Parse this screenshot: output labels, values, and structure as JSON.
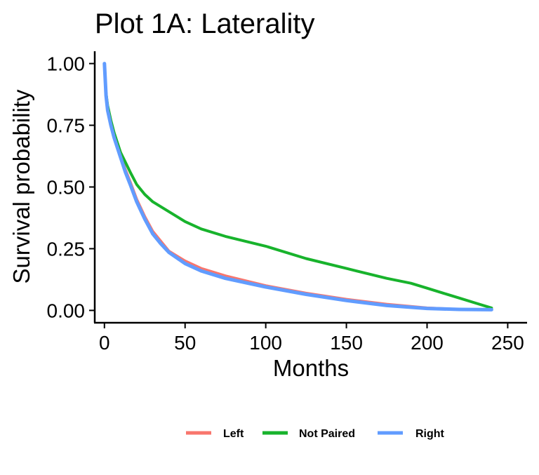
{
  "chart_data": {
    "type": "line",
    "title": "Plot 1A: Laterality",
    "xlabel": "Months",
    "ylabel": "Survival probability",
    "xlim": [
      -6,
      262
    ],
    "ylim": [
      -0.05,
      1.05
    ],
    "x_ticks": [
      0,
      50,
      100,
      150,
      200,
      250
    ],
    "x_tick_labels": [
      "0",
      "50",
      "100",
      "150",
      "200",
      "250"
    ],
    "y_ticks": [
      0,
      0.25,
      0.5,
      0.75,
      1.0
    ],
    "y_tick_labels": [
      "0.00",
      "0.25",
      "0.50",
      "0.75",
      "1.00"
    ],
    "grid": false,
    "legend_position": "bottom",
    "series": [
      {
        "name": "Left",
        "color": "#F8766D",
        "x": [
          0,
          1,
          2,
          4,
          6,
          8,
          10,
          13,
          16,
          20,
          25,
          30,
          35,
          40,
          50,
          60,
          75,
          100,
          125,
          150,
          175,
          200,
          220,
          240
        ],
        "y": [
          1.0,
          0.88,
          0.82,
          0.76,
          0.71,
          0.67,
          0.63,
          0.57,
          0.52,
          0.45,
          0.38,
          0.32,
          0.28,
          0.24,
          0.2,
          0.17,
          0.14,
          0.1,
          0.07,
          0.045,
          0.025,
          0.01,
          0.004,
          0.003
        ]
      },
      {
        "name": "Not Paired",
        "color": "#18B32C",
        "x": [
          0,
          1,
          2,
          4,
          6,
          8,
          10,
          13,
          16,
          20,
          25,
          30,
          40,
          50,
          60,
          75,
          100,
          125,
          150,
          175,
          190,
          200,
          210,
          220,
          230,
          240
        ],
        "y": [
          1.0,
          0.88,
          0.83,
          0.77,
          0.72,
          0.68,
          0.64,
          0.6,
          0.56,
          0.51,
          0.47,
          0.44,
          0.4,
          0.36,
          0.33,
          0.3,
          0.26,
          0.21,
          0.17,
          0.13,
          0.11,
          0.09,
          0.07,
          0.05,
          0.03,
          0.01
        ]
      },
      {
        "name": "Right",
        "color": "#619CFF",
        "x": [
          0,
          1,
          2,
          4,
          6,
          8,
          10,
          13,
          16,
          20,
          25,
          30,
          35,
          40,
          50,
          60,
          75,
          100,
          125,
          150,
          175,
          200,
          220,
          240
        ],
        "y": [
          1.0,
          0.87,
          0.81,
          0.75,
          0.7,
          0.66,
          0.62,
          0.56,
          0.51,
          0.44,
          0.37,
          0.31,
          0.27,
          0.235,
          0.19,
          0.16,
          0.13,
          0.095,
          0.065,
          0.04,
          0.02,
          0.008,
          0.004,
          0.003
        ]
      }
    ]
  }
}
